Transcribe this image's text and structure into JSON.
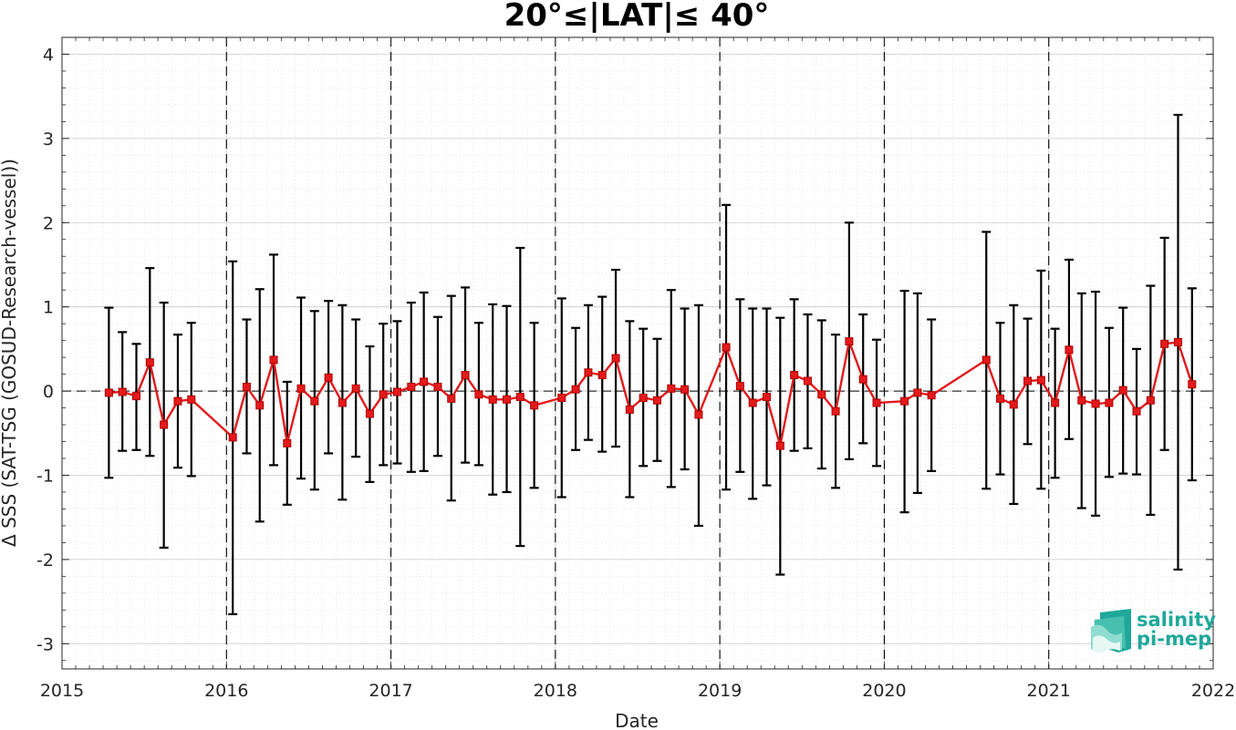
{
  "chart_data": {
    "type": "line",
    "title": "20°≤|LAT|≤ 40°",
    "xlabel": "Date",
    "ylabel": "Δ SSS (SAT-TSG (GOSUD-Research-vessel))",
    "xlim": [
      "2015-01-01",
      "2022-01-01"
    ],
    "ylim": [
      -3.3,
      4.2
    ],
    "x_ticks": [
      "2015",
      "2016",
      "2017",
      "2018",
      "2019",
      "2020",
      "2021",
      "2022"
    ],
    "y_ticks": [
      "-3",
      "-2",
      "-1",
      "0",
      "1",
      "2",
      "3",
      "4"
    ],
    "grid": true,
    "year_dividers": [
      "2016",
      "2017",
      "2018",
      "2019",
      "2020",
      "2021"
    ],
    "zero_line": 0,
    "series": [
      {
        "color": "#e31a1c",
        "marker": "square",
        "points": [
          {
            "x": "2015-04-15",
            "y": -0.02,
            "lo": -1.03,
            "hi": 0.99
          },
          {
            "x": "2015-05-15",
            "y": -0.01,
            "lo": -0.71,
            "hi": 0.7
          },
          {
            "x": "2015-06-15",
            "y": -0.06,
            "lo": -0.7,
            "hi": 0.56
          },
          {
            "x": "2015-07-15",
            "y": 0.34,
            "lo": -0.77,
            "hi": 1.46
          },
          {
            "x": "2015-08-15",
            "y": -0.4,
            "lo": -1.86,
            "hi": 1.05
          },
          {
            "x": "2015-09-15",
            "y": -0.12,
            "lo": -0.91,
            "hi": 0.67
          },
          {
            "x": "2015-10-15",
            "y": -0.1,
            "lo": -1.01,
            "hi": 0.81
          },
          {
            "x": "2016-01-15",
            "y": -0.55,
            "lo": -2.65,
            "hi": 1.54
          },
          {
            "x": "2016-02-15",
            "y": 0.05,
            "lo": -0.74,
            "hi": 0.85
          },
          {
            "x": "2016-03-15",
            "y": -0.17,
            "lo": -1.55,
            "hi": 1.21
          },
          {
            "x": "2016-04-15",
            "y": 0.37,
            "lo": -0.88,
            "hi": 1.62
          },
          {
            "x": "2016-05-15",
            "y": -0.62,
            "lo": -1.35,
            "hi": 0.11
          },
          {
            "x": "2016-06-15",
            "y": 0.03,
            "lo": -1.04,
            "hi": 1.11
          },
          {
            "x": "2016-07-15",
            "y": -0.12,
            "lo": -1.17,
            "hi": 0.95
          },
          {
            "x": "2016-08-15",
            "y": 0.16,
            "lo": -0.74,
            "hi": 1.07
          },
          {
            "x": "2016-09-15",
            "y": -0.14,
            "lo": -1.29,
            "hi": 1.02
          },
          {
            "x": "2016-10-15",
            "y": 0.03,
            "lo": -0.78,
            "hi": 0.85
          },
          {
            "x": "2016-11-15",
            "y": -0.27,
            "lo": -1.08,
            "hi": 0.53
          },
          {
            "x": "2016-12-15",
            "y": -0.04,
            "lo": -0.88,
            "hi": 0.8
          },
          {
            "x": "2017-01-15",
            "y": -0.01,
            "lo": -0.86,
            "hi": 0.83
          },
          {
            "x": "2017-02-15",
            "y": 0.05,
            "lo": -0.96,
            "hi": 1.05
          },
          {
            "x": "2017-03-15",
            "y": 0.11,
            "lo": -0.95,
            "hi": 1.17
          },
          {
            "x": "2017-04-15",
            "y": 0.05,
            "lo": -0.77,
            "hi": 0.88
          },
          {
            "x": "2017-05-15",
            "y": -0.09,
            "lo": -1.3,
            "hi": 1.13
          },
          {
            "x": "2017-06-15",
            "y": 0.19,
            "lo": -0.85,
            "hi": 1.23
          },
          {
            "x": "2017-07-15",
            "y": -0.04,
            "lo": -0.88,
            "hi": 0.81
          },
          {
            "x": "2017-08-15",
            "y": -0.1,
            "lo": -1.23,
            "hi": 1.03
          },
          {
            "x": "2017-09-15",
            "y": -0.1,
            "lo": -1.2,
            "hi": 1.01
          },
          {
            "x": "2017-10-15",
            "y": -0.07,
            "lo": -1.84,
            "hi": 1.7
          },
          {
            "x": "2017-11-15",
            "y": -0.17,
            "lo": -1.15,
            "hi": 0.81
          },
          {
            "x": "2018-01-15",
            "y": -0.08,
            "lo": -1.26,
            "hi": 1.1
          },
          {
            "x": "2018-02-15",
            "y": 0.02,
            "lo": -0.7,
            "hi": 0.75
          },
          {
            "x": "2018-03-15",
            "y": 0.22,
            "lo": -0.58,
            "hi": 1.02
          },
          {
            "x": "2018-04-15",
            "y": 0.19,
            "lo": -0.72,
            "hi": 1.12
          },
          {
            "x": "2018-05-15",
            "y": 0.39,
            "lo": -0.66,
            "hi": 1.44
          },
          {
            "x": "2018-06-15",
            "y": -0.22,
            "lo": -1.26,
            "hi": 0.83
          },
          {
            "x": "2018-07-15",
            "y": -0.08,
            "lo": -0.89,
            "hi": 0.74
          },
          {
            "x": "2018-08-15",
            "y": -0.11,
            "lo": -0.83,
            "hi": 0.62
          },
          {
            "x": "2018-09-15",
            "y": 0.03,
            "lo": -1.14,
            "hi": 1.2
          },
          {
            "x": "2018-10-15",
            "y": 0.02,
            "lo": -0.93,
            "hi": 0.98
          },
          {
            "x": "2018-11-15",
            "y": -0.28,
            "lo": -1.6,
            "hi": 1.02
          },
          {
            "x": "2019-01-15",
            "y": 0.52,
            "lo": -1.17,
            "hi": 2.21
          },
          {
            "x": "2019-02-15",
            "y": 0.06,
            "lo": -0.96,
            "hi": 1.09
          },
          {
            "x": "2019-03-15",
            "y": -0.14,
            "lo": -1.28,
            "hi": 0.98
          },
          {
            "x": "2019-04-15",
            "y": -0.07,
            "lo": -1.12,
            "hi": 0.98
          },
          {
            "x": "2019-05-15",
            "y": -0.65,
            "lo": -2.18,
            "hi": 0.87
          },
          {
            "x": "2019-06-15",
            "y": 0.19,
            "lo": -0.71,
            "hi": 1.09
          },
          {
            "x": "2019-07-15",
            "y": 0.12,
            "lo": -0.68,
            "hi": 0.91
          },
          {
            "x": "2019-08-15",
            "y": -0.04,
            "lo": -0.92,
            "hi": 0.84
          },
          {
            "x": "2019-09-15",
            "y": -0.24,
            "lo": -1.15,
            "hi": 0.67
          },
          {
            "x": "2019-10-15",
            "y": 0.59,
            "lo": -0.81,
            "hi": 2.0
          },
          {
            "x": "2019-11-15",
            "y": 0.14,
            "lo": -0.62,
            "hi": 0.91
          },
          {
            "x": "2019-12-15",
            "y": -0.14,
            "lo": -0.89,
            "hi": 0.61
          },
          {
            "x": "2020-02-15",
            "y": -0.12,
            "lo": -1.44,
            "hi": 1.19
          },
          {
            "x": "2020-03-15",
            "y": -0.02,
            "lo": -1.21,
            "hi": 1.16
          },
          {
            "x": "2020-04-15",
            "y": -0.05,
            "lo": -0.95,
            "hi": 0.85
          },
          {
            "x": "2020-08-15",
            "y": 0.37,
            "lo": -1.16,
            "hi": 1.89
          },
          {
            "x": "2020-09-15",
            "y": -0.09,
            "lo": -0.99,
            "hi": 0.81
          },
          {
            "x": "2020-10-15",
            "y": -0.16,
            "lo": -1.34,
            "hi": 1.02
          },
          {
            "x": "2020-11-15",
            "y": 0.12,
            "lo": -0.63,
            "hi": 0.86
          },
          {
            "x": "2020-12-15",
            "y": 0.13,
            "lo": -1.16,
            "hi": 1.43
          },
          {
            "x": "2021-01-15",
            "y": -0.14,
            "lo": -1.03,
            "hi": 0.74
          },
          {
            "x": "2021-02-15",
            "y": 0.49,
            "lo": -0.57,
            "hi": 1.56
          },
          {
            "x": "2021-03-15",
            "y": -0.11,
            "lo": -1.39,
            "hi": 1.16
          },
          {
            "x": "2021-04-15",
            "y": -0.15,
            "lo": -1.48,
            "hi": 1.18
          },
          {
            "x": "2021-05-15",
            "y": -0.14,
            "lo": -1.02,
            "hi": 0.75
          },
          {
            "x": "2021-06-15",
            "y": 0.01,
            "lo": -0.98,
            "hi": 0.99
          },
          {
            "x": "2021-07-15",
            "y": -0.24,
            "lo": -0.99,
            "hi": 0.5
          },
          {
            "x": "2021-08-15",
            "y": -0.11,
            "lo": -1.47,
            "hi": 1.25
          },
          {
            "x": "2021-09-15",
            "y": 0.56,
            "lo": -0.7,
            "hi": 1.82
          },
          {
            "x": "2021-10-15",
            "y": 0.58,
            "lo": -2.12,
            "hi": 3.28
          },
          {
            "x": "2021-11-15",
            "y": 0.08,
            "lo": -1.06,
            "hi": 1.22
          }
        ]
      }
    ],
    "segment_breaks": [
      "2016-01-15",
      "2020-08-15"
    ]
  },
  "logo": {
    "line1": "salinity",
    "line2": "pi-mep",
    "color": "#1fa89a"
  }
}
